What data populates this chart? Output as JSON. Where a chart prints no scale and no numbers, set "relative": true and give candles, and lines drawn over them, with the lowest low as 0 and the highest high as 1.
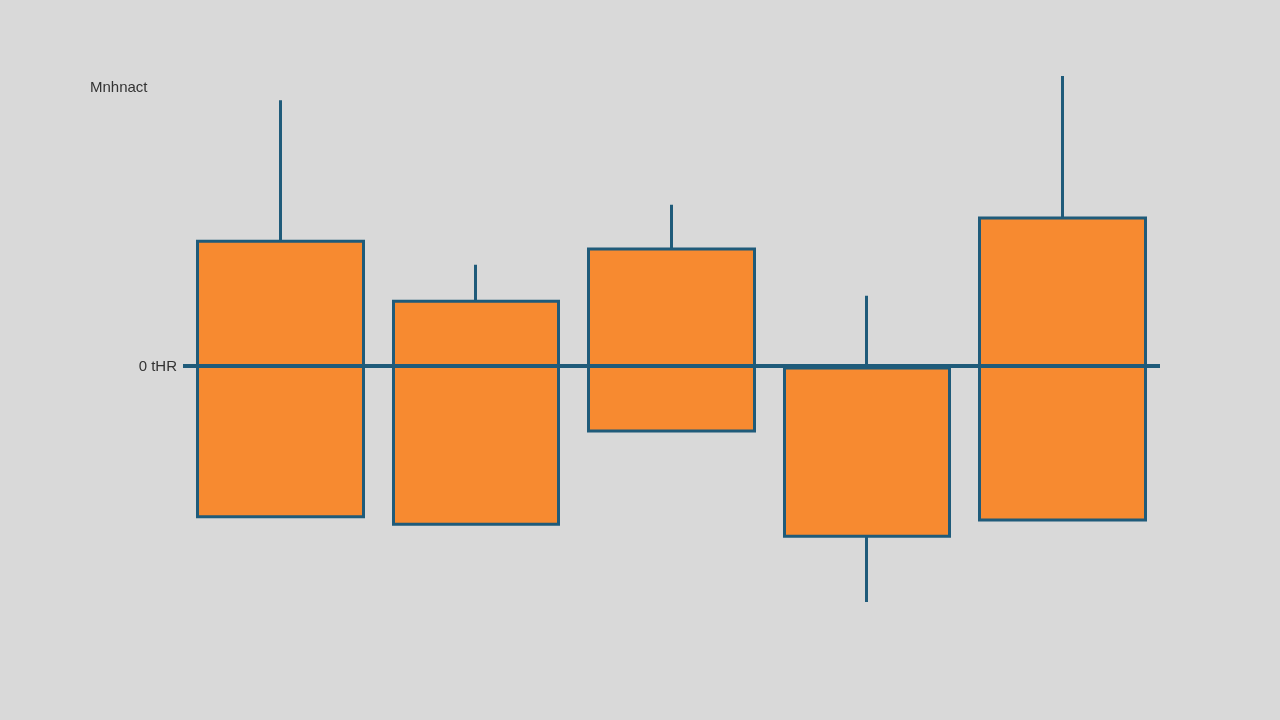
{
  "chart_data": {
    "type": "candlestick",
    "relative": true,
    "ylabel": "Mnhnact",
    "categories": [
      null,
      null,
      null,
      null,
      null
    ],
    "ohlc": [
      [
        0.162,
        0.954,
        0.162,
        0.686
      ],
      [
        0.148,
        0.641,
        0.148,
        0.572
      ],
      [
        0.325,
        0.755,
        0.325,
        0.671
      ],
      [
        0.125,
        0.582,
        0,
        0.445
      ],
      [
        0.156,
        1,
        0.156,
        0.73
      ]
    ],
    "color": "#f78a30",
    "ref_lines": [
      {
        "axis": "y",
        "value": 0.445,
        "label": "0 tHR",
        "color": "#1f5b7a"
      }
    ]
  }
}
